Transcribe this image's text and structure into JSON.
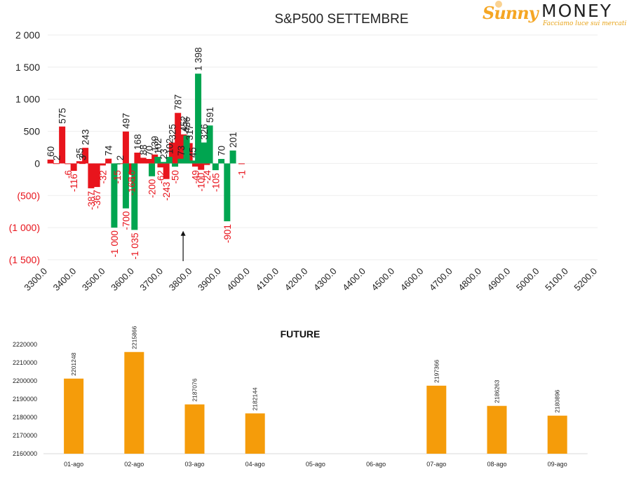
{
  "logo": {
    "brand_part1": "Sunny",
    "brand_part2": "MONEY",
    "tagline": "Facciamo luce sui mercati"
  },
  "chart_data": [
    {
      "type": "bar",
      "title": "S&P500 SETTEMBRE",
      "ylim": [
        -1500,
        2000
      ],
      "yticks": [
        2000,
        1500,
        1000,
        500,
        0,
        -500,
        -1000,
        -1500
      ],
      "ytick_labels": [
        "2 000",
        "1 500",
        "1 000",
        "500",
        "0",
        "(500)",
        "(1 000)",
        "(1 500)"
      ],
      "xlim": [
        3300,
        5200
      ],
      "xticks": [
        3300,
        3400,
        3500,
        3600,
        3700,
        3800,
        3900,
        4000,
        4100,
        4200,
        4300,
        4400,
        4500,
        4600,
        4700,
        4800,
        4900,
        5000,
        5100,
        5200
      ],
      "xtick_labels": [
        "3300.0",
        "3400.0",
        "3500.0",
        "3600.0",
        "3700.0",
        "3800.0",
        "3900.0",
        "4000.0",
        "4100.0",
        "4200.0",
        "4300.0",
        "4400.0",
        "4500.0",
        "4600.0",
        "4700.0",
        "4800.0",
        "4900.0",
        "5000.0",
        "5100.0",
        "5200.0"
      ],
      "grid": true,
      "series": [
        {
          "color": "#e8141c",
          "points": [
            {
              "x": 3310,
              "y": 60,
              "label": "60"
            },
            {
              "x": 3330,
              "y": 2,
              "label": "2"
            },
            {
              "x": 3350,
              "y": 575,
              "label": "575"
            },
            {
              "x": 3370,
              "y": -6,
              "label": "-6"
            },
            {
              "x": 3390,
              "y": -116,
              "label": "-116"
            },
            {
              "x": 3410,
              "y": 35,
              "label": "35"
            },
            {
              "x": 3420,
              "y": 3,
              "label": "3"
            },
            {
              "x": 3430,
              "y": 243,
              "label": "243"
            },
            {
              "x": 3450,
              "y": -387,
              "label": "-387"
            },
            {
              "x": 3470,
              "y": -367,
              "label": "-367"
            },
            {
              "x": 3490,
              "y": -32,
              "label": "-32"
            },
            {
              "x": 3510,
              "y": 74,
              "label": "74"
            },
            {
              "x": 3550,
              "y": 2,
              "label": "2"
            },
            {
              "x": 3570,
              "y": 497,
              "label": "497"
            },
            {
              "x": 3590,
              "y": -10,
              "label": "-10"
            },
            {
              "x": 3590,
              "y": -165,
              "label": "-165"
            },
            {
              "x": 3610,
              "y": 168,
              "label": "168"
            },
            {
              "x": 3630,
              "y": 88,
              "label": "88"
            },
            {
              "x": 3650,
              "y": 70,
              "label": "70"
            },
            {
              "x": 3670,
              "y": 139,
              "label": "139"
            },
            {
              "x": 3690,
              "y": -62,
              "label": "-62"
            },
            {
              "x": 3710,
              "y": -243,
              "label": "-243"
            },
            {
              "x": 3730,
              "y": 325,
              "label": "325"
            },
            {
              "x": 3750,
              "y": 787,
              "label": "787"
            },
            {
              "x": 3770,
              "y": 452,
              "label": "452"
            },
            {
              "x": 3790,
              "y": 317,
              "label": "317"
            },
            {
              "x": 3810,
              "y": -49,
              "label": "-49"
            },
            {
              "x": 3830,
              "y": -100,
              "label": "-100"
            },
            {
              "x": 3850,
              "y": -24,
              "label": "-24"
            },
            {
              "x": 3970,
              "y": -1,
              "label": "-1"
            }
          ]
        },
        {
          "color": "#00a550",
          "points": [
            {
              "x": 3530,
              "y": -1000,
              "label": "-1 000"
            },
            {
              "x": 3540,
              "y": -15,
              "label": "-15"
            },
            {
              "x": 3570,
              "y": -700,
              "label": "-700"
            },
            {
              "x": 3600,
              "y": -1035,
              "label": "-1 035"
            },
            {
              "x": 3660,
              "y": -200,
              "label": "-200"
            },
            {
              "x": 3680,
              "y": 102,
              "label": "102"
            },
            {
              "x": 3700,
              "y": 23,
              "label": "23"
            },
            {
              "x": 3720,
              "y": 102,
              "label": "102"
            },
            {
              "x": 3740,
              "y": -50,
              "label": "-50"
            },
            {
              "x": 3760,
              "y": 73,
              "label": "73"
            },
            {
              "x": 3780,
              "y": 436,
              "label": "436"
            },
            {
              "x": 3800,
              "y": 45,
              "label": "45"
            },
            {
              "x": 3820,
              "y": 1398,
              "label": "1 398"
            },
            {
              "x": 3840,
              "y": 326,
              "label": "326"
            },
            {
              "x": 3860,
              "y": 591,
              "label": "591"
            },
            {
              "x": 3880,
              "y": -105,
              "label": "-105"
            },
            {
              "x": 3900,
              "y": 70,
              "label": "70"
            },
            {
              "x": 3920,
              "y": -901,
              "label": "-901"
            },
            {
              "x": 3940,
              "y": 201,
              "label": "201"
            }
          ]
        }
      ],
      "annotation": {
        "type": "arrow-up",
        "x": 3768,
        "from": -1500,
        "to": -1050
      }
    },
    {
      "type": "bar",
      "title": "FUTURE",
      "ylim": [
        2160000,
        2220000
      ],
      "yticks": [
        2160000,
        2170000,
        2180000,
        2190000,
        2200000,
        2210000,
        2220000
      ],
      "ytick_labels": [
        "2160000",
        "2170000",
        "2180000",
        "2190000",
        "2200000",
        "2210000",
        "2220000"
      ],
      "categories": [
        "01-ago",
        "02-ago",
        "03-ago",
        "04-ago",
        "05-ago",
        "06-ago",
        "07-ago",
        "08-ago",
        "09-ago"
      ],
      "values": [
        2201248,
        2215866,
        2187076,
        2182144,
        null,
        null,
        2197366,
        2186263,
        2180896
      ],
      "value_labels": [
        "2201248",
        "2215866",
        "2187076",
        "2182144",
        "",
        "",
        "2197366",
        "2186263",
        "2180896"
      ],
      "color": "#f59c0a",
      "grid": false
    }
  ]
}
